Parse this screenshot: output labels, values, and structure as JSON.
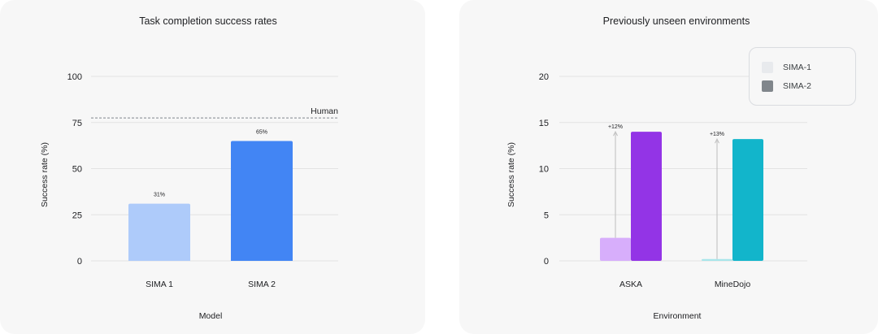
{
  "chart_data": [
    {
      "type": "bar",
      "title": "Task completion success rates",
      "xlabel": "Model",
      "ylabel": "Success rate (%)",
      "ylim": [
        0,
        100
      ],
      "yticks": [
        "0",
        "25",
        "50",
        "75",
        "100"
      ],
      "categories": [
        "SIMA 1",
        "SIMA 2"
      ],
      "values": [
        31,
        65
      ],
      "value_labels": [
        "31%",
        "65%"
      ],
      "colors": [
        "#aecbfa",
        "#4285f4"
      ],
      "reference_line": {
        "label": "Human",
        "value": 77.5,
        "style": "dashed"
      },
      "grid": true
    },
    {
      "type": "bar",
      "title": "Previously unseen environments",
      "xlabel": "Environment",
      "ylabel": "Success rate (%)",
      "ylim": [
        0,
        20
      ],
      "yticks": [
        "0",
        "5",
        "10",
        "15",
        "20"
      ],
      "categories": [
        "ASKA",
        "MineDojo"
      ],
      "series": [
        {
          "name": "SIMA-1",
          "values": [
            2.5,
            0.2
          ],
          "colors": [
            "#d7aefb",
            "#a8e6ea"
          ]
        },
        {
          "name": "SIMA-2",
          "values": [
            14.0,
            13.2
          ],
          "colors": [
            "#9334e6",
            "#12b5cb"
          ]
        }
      ],
      "improvements": [
        "+12%",
        "+13%"
      ],
      "legend": {
        "placement": "top-right",
        "entries": [
          {
            "label": "SIMA-1",
            "color": "#e8eaed"
          },
          {
            "label": "SIMA-2",
            "color": "#80868b"
          }
        ]
      },
      "grid": true
    }
  ]
}
